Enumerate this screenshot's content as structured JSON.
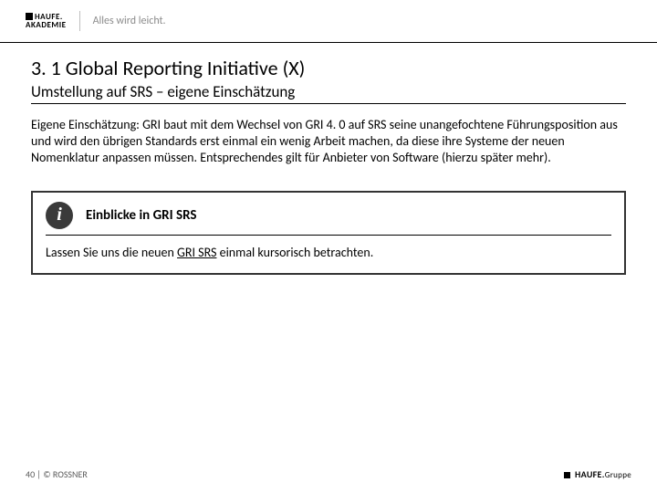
{
  "header": {
    "logo_line1": "HAUFE.",
    "logo_line2": "AKADEMIE",
    "tagline": "Alles wird leicht."
  },
  "content": {
    "title": "3. 1 Global Reporting Initiative (X)",
    "subtitle": "Umstellung auf SRS – eigene Einschätzung",
    "body": "Eigene Einschätzung: GRI baut mit dem Wechsel von GRI 4. 0 auf SRS seine unangefochtene Führungsposition aus und wird den übrigen Standards erst einmal ein wenig Arbeit machen, da diese ihre Systeme der neuen Nomenklatur anpassen müssen. Entsprechendes gilt für Anbieter von Software (hierzu später mehr)."
  },
  "panel": {
    "icon_glyph": "i",
    "title": "Einblicke in GRI SRS",
    "body_prefix": "Lassen Sie uns die neuen ",
    "body_link": "GRI SRS",
    "body_suffix": " einmal kursorisch betrachten."
  },
  "footer": {
    "page": "40",
    "sep": " | © ",
    "author": "ROSSNER",
    "logo_text": "HAUFE.",
    "logo_suffix": "Gruppe"
  },
  "colors": {
    "text": "#000000",
    "muted": "#8c8c8c",
    "rule": "#000000",
    "panel_border": "#333333",
    "icon_bg": "#3a3a3a",
    "background": "#ffffff"
  }
}
